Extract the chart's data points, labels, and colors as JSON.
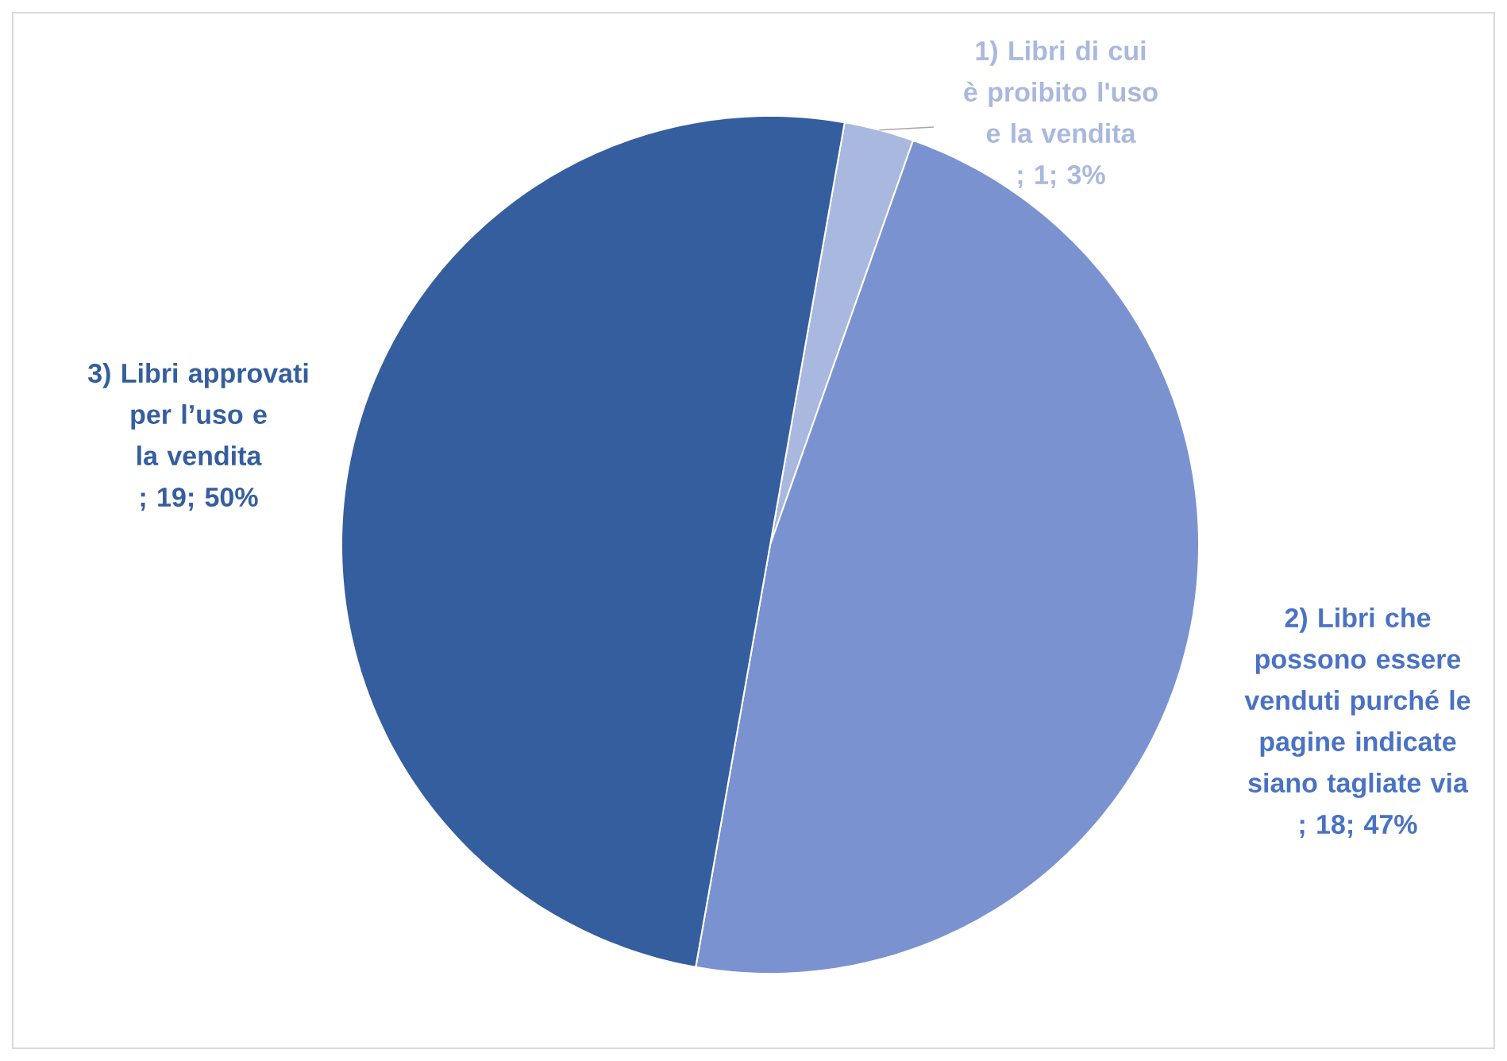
{
  "chart_data": {
    "type": "pie",
    "categories": [
      "1) Libri di cui è proibito l'uso e la vendita",
      "2) Libri che possono essere venduti purché le pagine indicate siano tagliate via",
      "3) Libri approvati per l’uso e la vendita"
    ],
    "values": [
      1,
      18,
      19
    ],
    "value_labels": [
      "; 1; 3%",
      "; 18; 47%",
      "; 19; 50%"
    ],
    "colors": [
      "#a9b8de",
      "#7a93d0",
      "#355e9f"
    ]
  }
}
